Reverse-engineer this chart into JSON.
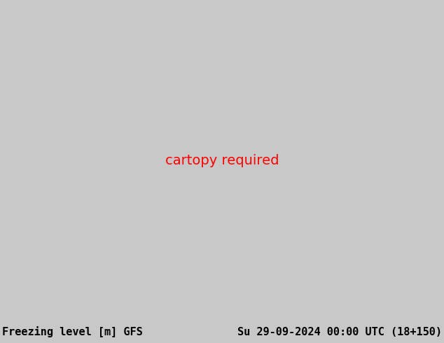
{
  "title_left": "Freezing level [m] GFS",
  "title_right": "Su 29-09-2024 00:00 UTC (18+150)",
  "footer_bg": "#c8c8c8",
  "footer_fontsize": 11,
  "font_family": "monospace",
  "text_color": "#000000",
  "ocean_color": "#b0d4e8",
  "land_color": "#d4ccaa",
  "border_color": "#555555",
  "coastline_color": "#555555",
  "contour_levels": [
    0,
    200,
    400,
    600,
    800,
    1000,
    1200,
    1400,
    1600,
    1800,
    2000,
    2200,
    2400,
    2600,
    2800,
    3000,
    3200,
    3400,
    3600,
    3800,
    4000,
    4200,
    4400,
    4600,
    4800,
    5000,
    5200
  ],
  "contour_colors": {
    "0": "#aa00cc",
    "200": "#aa00cc",
    "400": "#aa00cc",
    "600": "#990099",
    "800": "#0000dd",
    "1000": "#0000cc",
    "1200": "#0033bb",
    "1400": "#0066cc",
    "1600": "#0099cc",
    "1800": "#00aacc",
    "2000": "#00bb88",
    "2200": "#00aa00",
    "2400": "#00aa00",
    "2600": "#00bb00",
    "2800": "#aaaa00",
    "3000": "#ccaa00",
    "3200": "#ffaa00",
    "3400": "#ffaa00",
    "3600": "#ff8800",
    "3800": "#ff6600",
    "4000": "#ff3300",
    "4200": "#ee2200",
    "4400": "#cc1100",
    "4600": "#aa0000",
    "4800": "#880000",
    "5000": "#660000",
    "5200": "#440000"
  },
  "extent": [
    25,
    155,
    10,
    80
  ],
  "label_fontsize": 5
}
